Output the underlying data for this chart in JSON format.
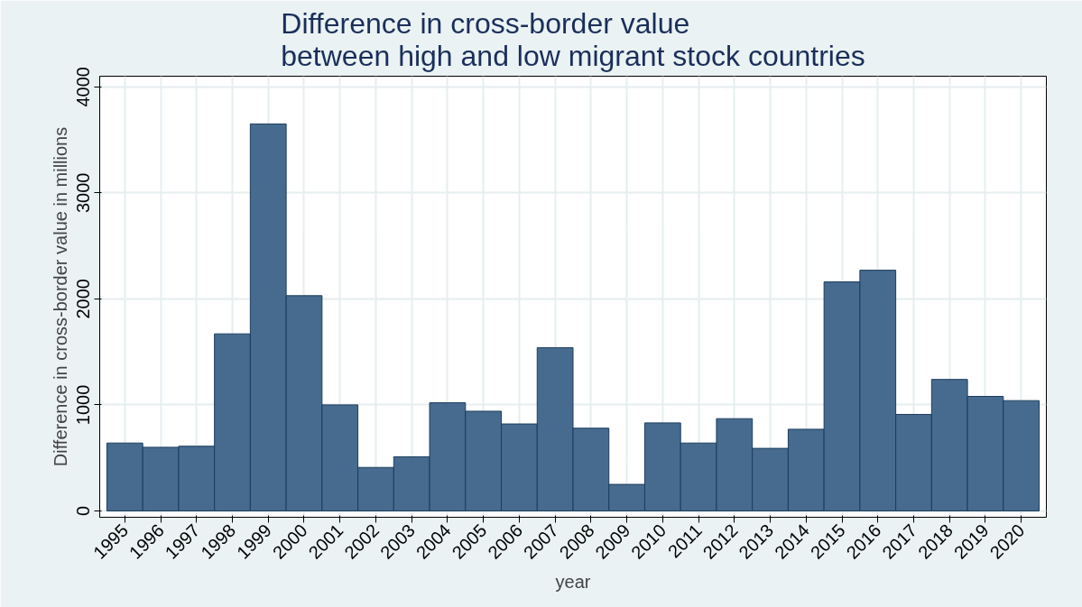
{
  "chart_data": {
    "type": "bar",
    "title": "Difference in cross-border value\nbetween high and low migrant stock countries",
    "xlabel": "year",
    "ylabel": "Difference in cross-border value in millions",
    "categories": [
      "1995",
      "1996",
      "1997",
      "1998",
      "1999",
      "2000",
      "2001",
      "2002",
      "2003",
      "2004",
      "2005",
      "2006",
      "2007",
      "2008",
      "2009",
      "2010",
      "2011",
      "2012",
      "2013",
      "2014",
      "2015",
      "2016",
      "2017",
      "2018",
      "2019",
      "2020"
    ],
    "values": [
      640,
      600,
      610,
      1670,
      3650,
      2030,
      1000,
      410,
      510,
      1020,
      940,
      820,
      1540,
      780,
      250,
      830,
      640,
      870,
      590,
      770,
      2160,
      2270,
      910,
      1240,
      1080,
      1040
    ],
    "color": "#476b8e",
    "ylim": [
      -60,
      4100
    ],
    "yticks": [
      0,
      1000,
      2000,
      3000,
      4000
    ],
    "grid": true
  }
}
